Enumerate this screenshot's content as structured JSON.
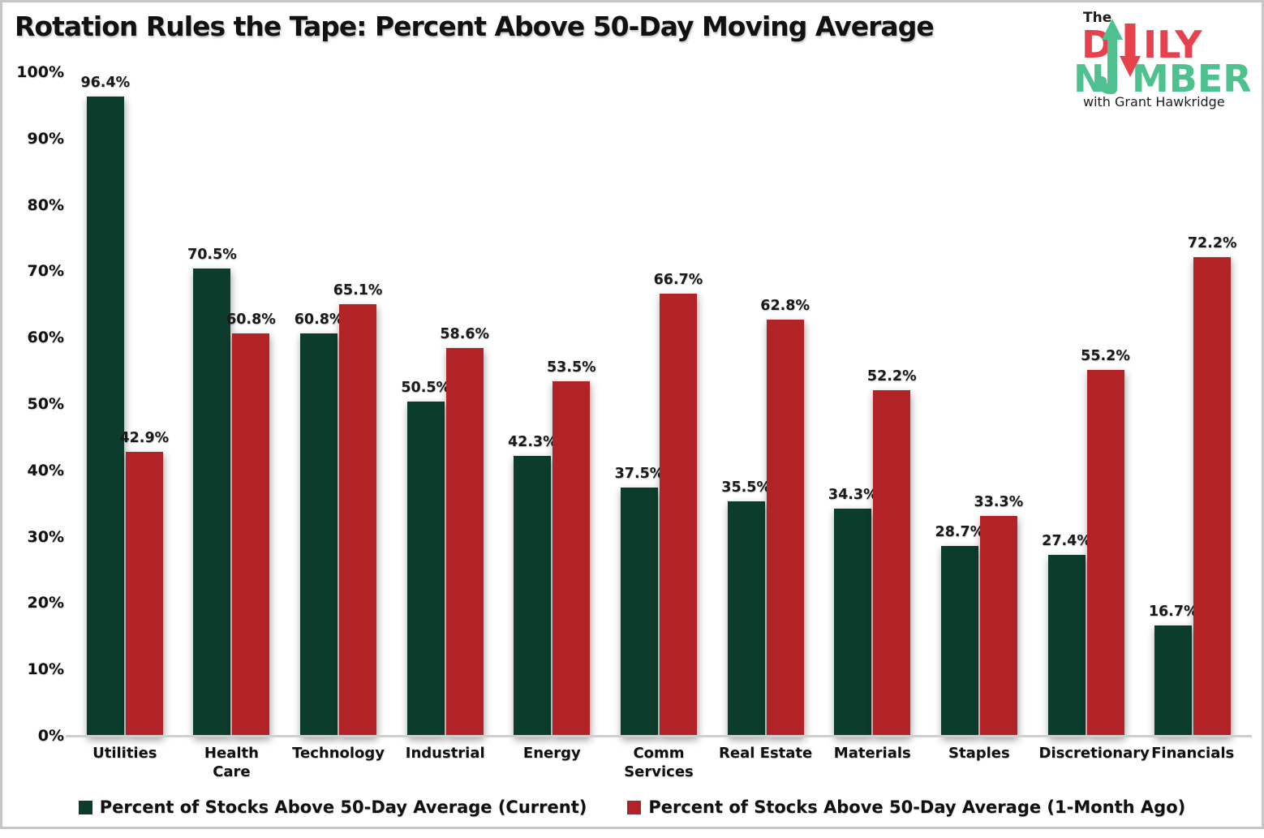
{
  "title": "Rotation Rules the Tape: Percent Above 50-Day Moving Average",
  "logo": {
    "the": "The",
    "word1_left": "D",
    "word1_right": "ILY",
    "word2_left": "N",
    "word2_right": "MBER",
    "tagline": "with Grant Hawkridge",
    "red": "#E8414E",
    "green": "#4EC18E",
    "text_color": "#1c1c1c"
  },
  "colors": {
    "bar_current": "#0C3D2C",
    "bar_prior": "#B22327",
    "axis_line": "#cfcfcf",
    "text": "#111111"
  },
  "chart_data": {
    "type": "bar",
    "title": "Rotation Rules the Tape: Percent Above 50-Day Moving Average",
    "categories": [
      "Utilities",
      "Health Care",
      "Technology",
      "Industrial",
      "Energy",
      "Comm Services",
      "Real Estate",
      "Materials",
      "Staples",
      "Discretionary",
      "Financials"
    ],
    "series": [
      {
        "name": "Percent of Stocks Above 50-Day Average (Current)",
        "color": "#0C3D2C",
        "values": [
          96.4,
          70.5,
          60.8,
          50.5,
          42.3,
          37.5,
          35.5,
          34.3,
          28.7,
          27.4,
          16.7
        ]
      },
      {
        "name": "Percent of Stocks Above 50-Day Average (1-Month Ago)",
        "color": "#B22327",
        "values": [
          42.9,
          60.8,
          65.1,
          58.6,
          53.5,
          66.7,
          62.8,
          52.2,
          33.3,
          55.2,
          72.2
        ]
      }
    ],
    "xlabel": "",
    "ylabel": "",
    "ylim": [
      0,
      100
    ],
    "yticks": [
      "0%",
      "10%",
      "20%",
      "30%",
      "40%",
      "50%",
      "60%",
      "70%",
      "80%",
      "90%",
      "100%"
    ],
    "value_suffix": "%",
    "grid": false,
    "legend_position": "bottom"
  }
}
